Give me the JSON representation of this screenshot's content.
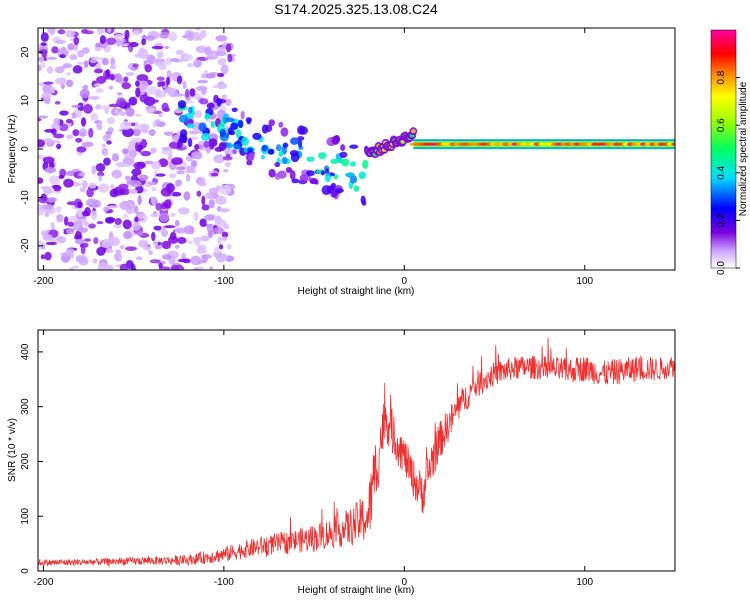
{
  "title": "S174.2025.325.13.08.C24",
  "chart_data": [
    {
      "type": "heatmap",
      "title": "S174.2025.325.13.08.C24",
      "xlabel": "Height of straight line (km)",
      "ylabel": "Frequency (Hz)",
      "xlim": [
        -203,
        150
      ],
      "ylim": [
        -25,
        25
      ],
      "xticks": [
        -200,
        -100,
        0,
        100
      ],
      "xtick_labels": [
        "-200",
        "-100",
        "0",
        "100"
      ],
      "yticks": [
        -20,
        -10,
        0,
        10,
        20
      ],
      "ytick_labels": [
        "-20",
        "-10",
        "0",
        "10",
        "20"
      ],
      "colorbar": {
        "label": "Normalized spectral amplitude",
        "range": [
          0,
          1
        ],
        "ticks": [
          0.0,
          0.2,
          0.4,
          0.6,
          0.8
        ],
        "tick_labels": [
          "0.0",
          "0.2",
          "0.4",
          "0.6",
          "0.8"
        ],
        "colormap": [
          "#ffffff",
          "#7a00e0",
          "#0000ff",
          "#00e0ff",
          "#00ff00",
          "#ffff00",
          "#ff8000",
          "#ff0000",
          "#ff00a0"
        ]
      },
      "features": [
        {
          "name": "noise-scatter",
          "x_range": [
            -203,
            -120
          ],
          "y_range": [
            -25,
            25
          ],
          "amplitude": 0.12
        },
        {
          "name": "fragmented-band",
          "x_range": [
            -125,
            -20
          ],
          "y_start": 7,
          "y_end": -6,
          "amplitude": 0.3
        },
        {
          "name": "onset",
          "x_range": [
            -20,
            5
          ],
          "y_start": -1,
          "y_end": 3,
          "amplitude": 0.6
        },
        {
          "name": "steady-line",
          "x_range": [
            5,
            150
          ],
          "y": 1,
          "amplitude": 0.85
        }
      ]
    },
    {
      "type": "line",
      "xlabel": "Height of straight line (km)",
      "ylabel": "SNR (10 * v/v)",
      "xlim": [
        -203,
        150
      ],
      "ylim": [
        0,
        440
      ],
      "xticks": [
        -200,
        -100,
        0,
        100
      ],
      "xtick_labels": [
        "-200",
        "-100",
        "0",
        "100"
      ],
      "yticks": [
        0,
        100,
        200,
        300,
        400
      ],
      "ytick_labels": [
        "0",
        "100",
        "200",
        "300",
        "400"
      ],
      "series": [
        {
          "name": "SNR",
          "color": "#f03030",
          "x": [
            -203,
            -180,
            -150,
            -120,
            -110,
            -100,
            -90,
            -80,
            -70,
            -60,
            -50,
            -40,
            -30,
            -25,
            -20,
            -17,
            -14,
            -12,
            -10,
            -5,
            0,
            5,
            10,
            15,
            20,
            25,
            30,
            35,
            40,
            50,
            60,
            70,
            80,
            90,
            100,
            110,
            120,
            130,
            140,
            150
          ],
          "values": [
            15,
            16,
            18,
            20,
            25,
            30,
            38,
            45,
            50,
            55,
            60,
            70,
            80,
            90,
            100,
            160,
            220,
            260,
            280,
            240,
            210,
            170,
            140,
            200,
            240,
            270,
            300,
            320,
            340,
            360,
            370,
            372,
            370,
            365,
            370,
            360,
            365,
            370,
            368,
            375
          ],
          "noise_amplitude": [
            6,
            6,
            7,
            9,
            12,
            14,
            16,
            18,
            20,
            22,
            25,
            28,
            35,
            40,
            50,
            70,
            60,
            50,
            45,
            40,
            35,
            35,
            40,
            40,
            35,
            30,
            28,
            25,
            25,
            22,
            22,
            22,
            22,
            24,
            24,
            24,
            24,
            24,
            22,
            20
          ]
        }
      ]
    }
  ]
}
